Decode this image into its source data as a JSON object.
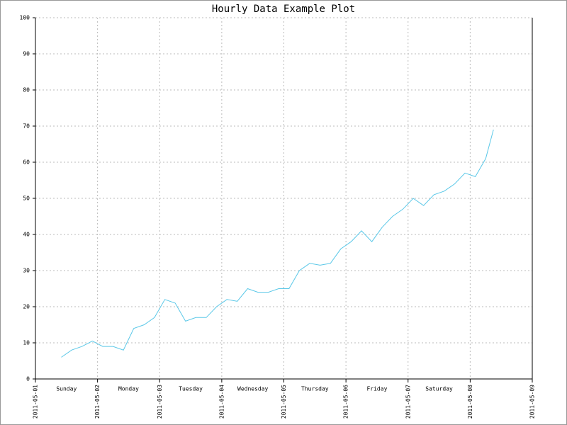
{
  "chart_data": {
    "type": "line",
    "title": "Hourly Data Example Plot",
    "x": [
      "2011-05-01T10:00",
      "2011-05-01T14:00",
      "2011-05-01T18:00",
      "2011-05-01T22:00",
      "2011-05-02T02:00",
      "2011-05-02T06:00",
      "2011-05-02T10:00",
      "2011-05-02T14:00",
      "2011-05-02T18:00",
      "2011-05-02T22:00",
      "2011-05-03T02:00",
      "2011-05-03T06:00",
      "2011-05-03T10:00",
      "2011-05-03T14:00",
      "2011-05-03T18:00",
      "2011-05-03T22:00",
      "2011-05-04T02:00",
      "2011-05-04T06:00",
      "2011-05-04T10:00",
      "2011-05-04T14:00",
      "2011-05-04T18:00",
      "2011-05-04T22:00",
      "2011-05-05T02:00",
      "2011-05-05T06:00",
      "2011-05-05T10:00",
      "2011-05-05T14:00",
      "2011-05-05T18:00",
      "2011-05-05T22:00",
      "2011-05-06T02:00",
      "2011-05-06T06:00",
      "2011-05-06T10:00",
      "2011-05-06T14:00",
      "2011-05-06T18:00",
      "2011-05-06T22:00",
      "2011-05-07T02:00",
      "2011-05-07T06:00",
      "2011-05-07T10:00",
      "2011-05-07T14:00",
      "2011-05-07T18:00",
      "2011-05-07T22:00",
      "2011-05-08T02:00",
      "2011-05-08T06:00",
      "2011-05-08T09:00"
    ],
    "series": [
      {
        "color": "#5bc8e8",
        "values": [
          6,
          8,
          9,
          10.5,
          9,
          9,
          8,
          14,
          15,
          17,
          22,
          21,
          16,
          17,
          17,
          20,
          22,
          21.5,
          25,
          24,
          24,
          25,
          25,
          30,
          32,
          31.5,
          32,
          36,
          38,
          41,
          38,
          42,
          45,
          47,
          50,
          48,
          51,
          52,
          54,
          57,
          56,
          61,
          69
        ]
      }
    ],
    "xlim": [
      "2011-05-01",
      "2011-05-09"
    ],
    "xticks": [
      "2011-05-01",
      "2011-05-02",
      "2011-05-03",
      "2011-05-04",
      "2011-05-05",
      "2011-05-06",
      "2011-05-07",
      "2011-05-08",
      "2011-05-09"
    ],
    "day_labels": [
      "Sunday",
      "Monday",
      "Tuesday",
      "Wednesday",
      "Thursday",
      "Friday",
      "Saturday"
    ],
    "ylim": [
      0,
      100
    ],
    "yticks": [
      0,
      10,
      20,
      30,
      40,
      50,
      60,
      70,
      80,
      90,
      100
    ],
    "grid": true
  }
}
